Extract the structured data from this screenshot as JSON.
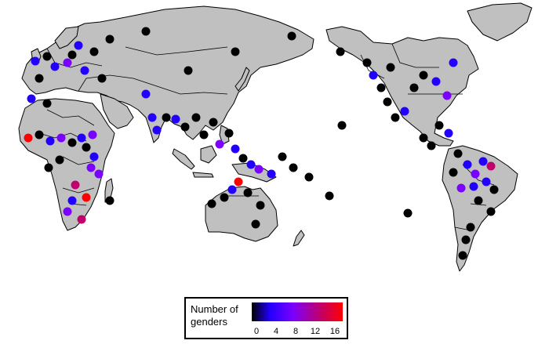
{
  "legend": {
    "title": "Number of genders",
    "ticks": [
      "0",
      "4",
      "8",
      "12",
      "16"
    ],
    "scale": {
      "min": 0,
      "max": 18
    },
    "colors": [
      "#000000",
      "#2200ff",
      "#7a00ff",
      "#c0006c",
      "#ff0000"
    ]
  },
  "land_color": "#c0c0c0",
  "border_color": "#000000",
  "sites_summary": {
    "value_shown_by": "point color",
    "marker": "circle"
  }
}
